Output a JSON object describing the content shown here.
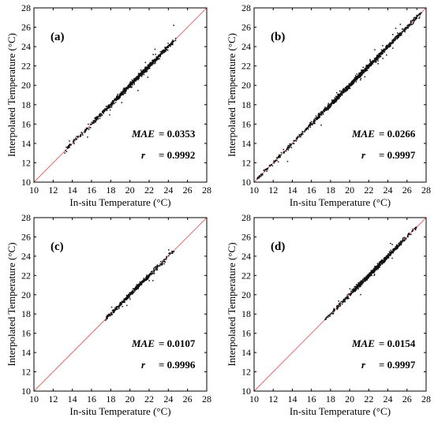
{
  "colors": {
    "identity_line": "#e06a6a",
    "points": "#111111",
    "axes": "#000000",
    "background": "#ffffff"
  },
  "chart_data": [
    {
      "type": "scatter",
      "panel_label": "(a)",
      "xlabel": "In-situ Temperature (°C)",
      "ylabel": "Interpolated Temperature (°C)",
      "xlim": [
        10,
        28
      ],
      "ylim": [
        10,
        28
      ],
      "xticks": [
        "10",
        "12",
        "14",
        "16",
        "18",
        "20",
        "22",
        "24",
        "26",
        "28"
      ],
      "yticks": [
        "10",
        "12",
        "14",
        "16",
        "18",
        "20",
        "22",
        "24",
        "26",
        "28"
      ],
      "grid": false,
      "reference_line": "y = x",
      "stats": {
        "mae_label": "MAE",
        "mae_value": "= 0.0353",
        "r_label": "r",
        "r_value": "= 0.9992"
      },
      "point_range": [
        13.2,
        24.8
      ],
      "point_density_center": 20.5,
      "approx_point_count": 900
    },
    {
      "type": "scatter",
      "panel_label": "(b)",
      "xlabel": "In-situ Temperature (°C)",
      "ylabel": "Interpolated Temperature (°C)",
      "xlim": [
        10,
        28
      ],
      "ylim": [
        10,
        28
      ],
      "xticks": [
        "10",
        "12",
        "14",
        "16",
        "18",
        "20",
        "22",
        "24",
        "26",
        "28"
      ],
      "yticks": [
        "10",
        "12",
        "14",
        "16",
        "18",
        "20",
        "22",
        "24",
        "26",
        "28"
      ],
      "grid": false,
      "reference_line": "y = x",
      "stats": {
        "mae_label": "MAE",
        "mae_value": "= 0.0266",
        "r_label": "r",
        "r_value": "= 0.9997"
      },
      "point_range": [
        10.3,
        27.5
      ],
      "point_density_center": 21.0,
      "approx_point_count": 1200
    },
    {
      "type": "scatter",
      "panel_label": "(c)",
      "xlabel": "In-situ Temperature (°C)",
      "ylabel": "Interpolated Temperature (°C)",
      "xlim": [
        10,
        28
      ],
      "ylim": [
        10,
        28
      ],
      "xticks": [
        "10",
        "12",
        "14",
        "16",
        "18",
        "20",
        "22",
        "24",
        "26",
        "28"
      ],
      "yticks": [
        "10",
        "12",
        "14",
        "16",
        "18",
        "20",
        "22",
        "24",
        "26",
        "28"
      ],
      "grid": false,
      "reference_line": "y = x",
      "stats": {
        "mae_label": "MAE",
        "mae_value": "= 0.0107",
        "r_label": "r",
        "r_value": "= 0.9996"
      },
      "point_range": [
        17.4,
        24.6
      ],
      "point_density_center": 20.5,
      "approx_point_count": 400
    },
    {
      "type": "scatter",
      "panel_label": "(d)",
      "xlabel": "In-situ Temperature (°C)",
      "ylabel": "Interpolated Temperature (°C)",
      "xlim": [
        10,
        28
      ],
      "ylim": [
        10,
        28
      ],
      "xticks": [
        "10",
        "12",
        "14",
        "16",
        "18",
        "20",
        "22",
        "24",
        "26",
        "28"
      ],
      "yticks": [
        "10",
        "12",
        "14",
        "16",
        "18",
        "20",
        "22",
        "24",
        "26",
        "28"
      ],
      "grid": false,
      "reference_line": "y = x",
      "stats": {
        "mae_label": "MAE",
        "mae_value": "= 0.0154",
        "r_label": "r",
        "r_value": "= 0.9997"
      },
      "point_range": [
        17.4,
        27.0
      ],
      "point_density_center": 22.5,
      "approx_point_count": 700
    }
  ]
}
